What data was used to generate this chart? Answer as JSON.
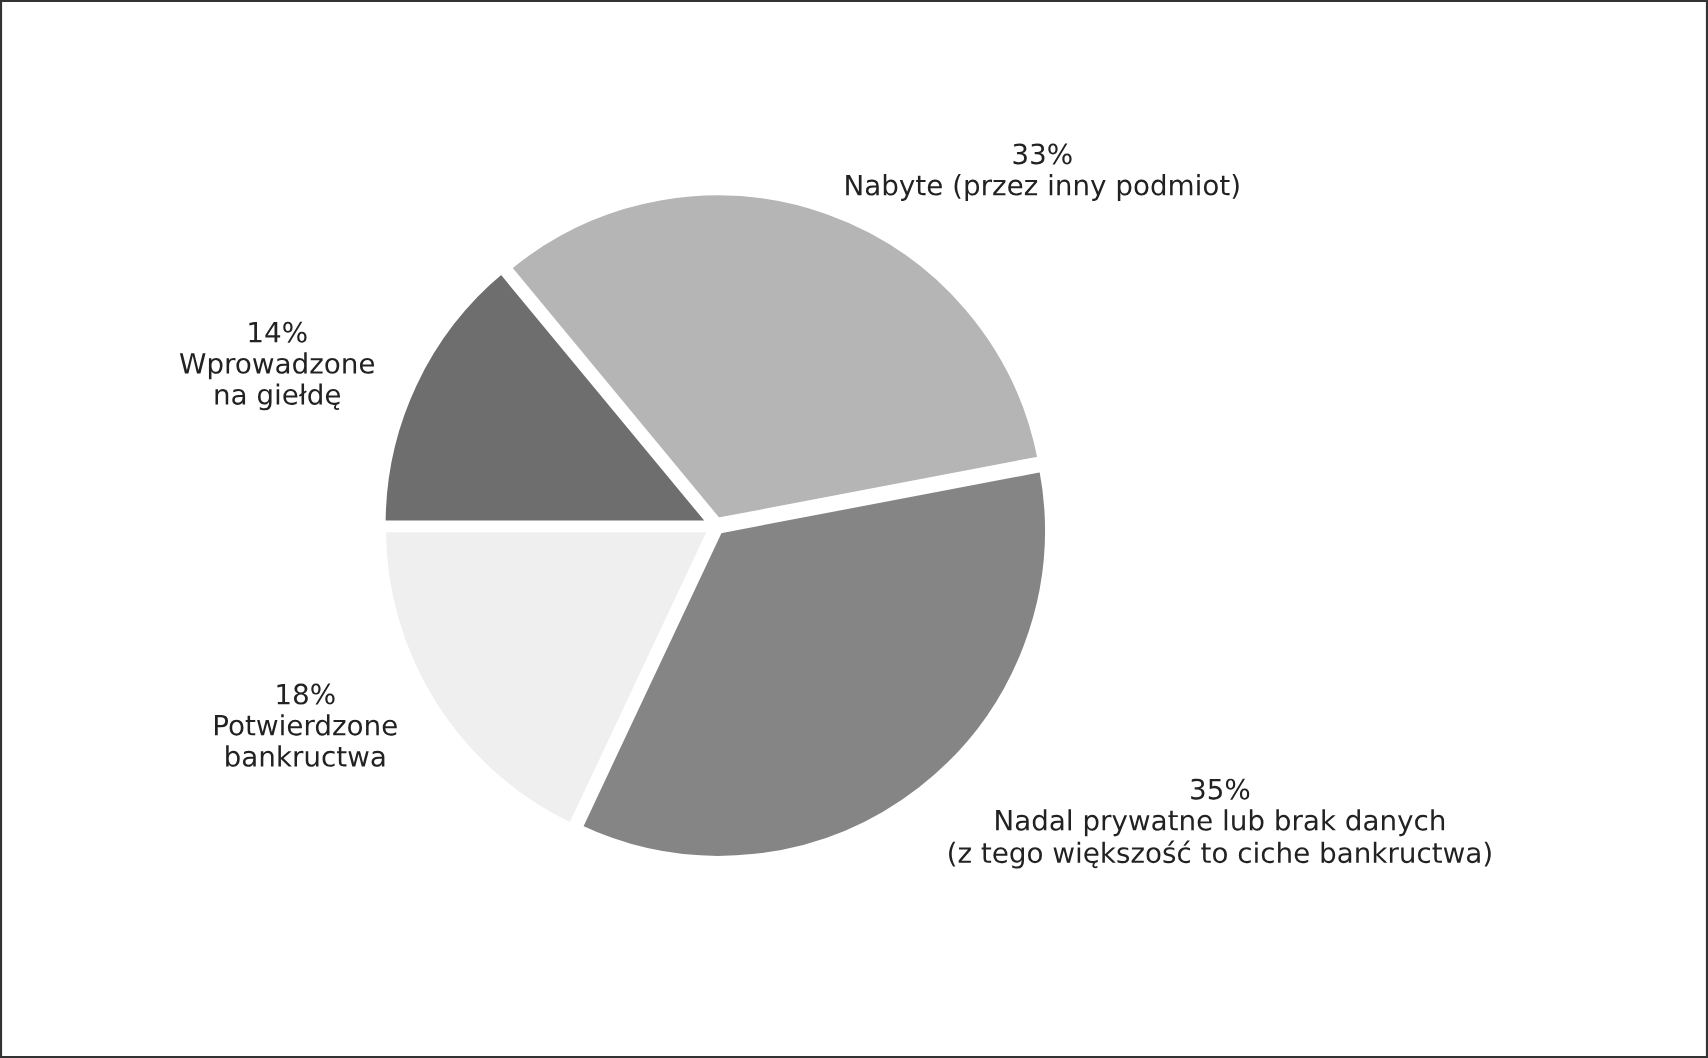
{
  "chart_data": {
    "type": "pie",
    "categories": [
      "Wprowadzone\nna giełdę",
      "Nabyte (przez inny podmiot)",
      "Nadal prywatne lub brak danych\n(z tego większość to ciche bankructwa)",
      "Potwierdzone\nbankructwa"
    ],
    "values": [
      14,
      33,
      35,
      18
    ],
    "value_labels": [
      "14%",
      "33%",
      "35%",
      "18%"
    ],
    "colors": [
      "#6e6e6e",
      "#b5b5b5",
      "#858585",
      "#efefef"
    ],
    "legend": false
  }
}
